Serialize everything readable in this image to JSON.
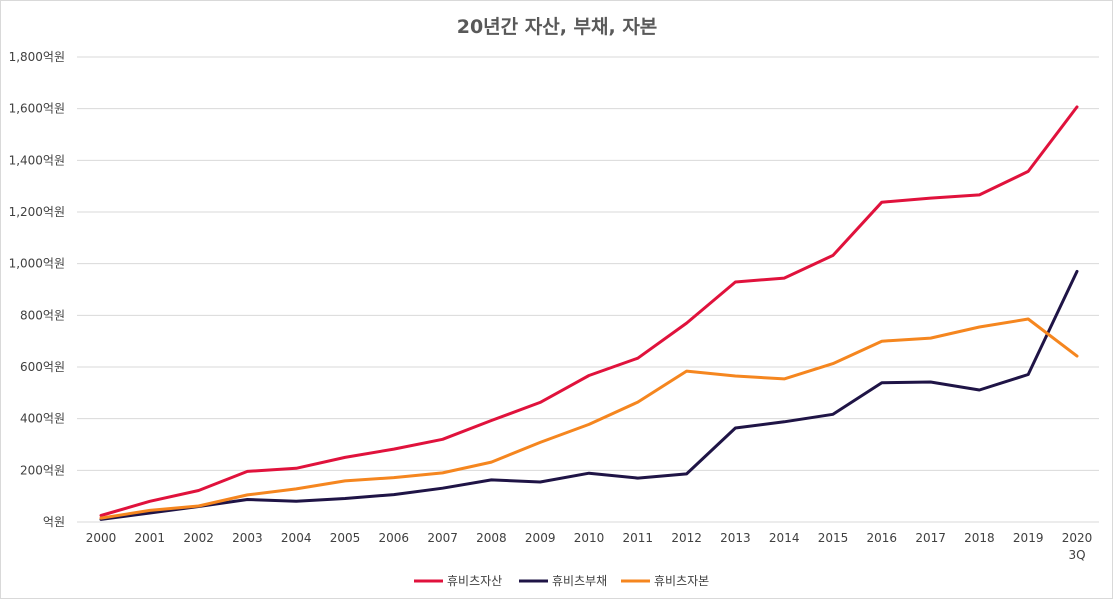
{
  "chart_data": {
    "type": "line",
    "title": "20년간 자산, 부채, 자본",
    "xlabel": "",
    "ylabel": "",
    "categories": [
      "2000",
      "2001",
      "2002",
      "2003",
      "2004",
      "2005",
      "2006",
      "2007",
      "2008",
      "2009",
      "2010",
      "2011",
      "2012",
      "2013",
      "2014",
      "2015",
      "2016",
      "2017",
      "2018",
      "2019",
      "2020\n3Q"
    ],
    "ylim": [
      0,
      1800
    ],
    "yticks": [
      0,
      200,
      400,
      600,
      800,
      1000,
      1200,
      1400,
      1600,
      1800
    ],
    "ytick_labels": [
      "억원",
      "200억원",
      "400억원",
      "600억원",
      "800억원",
      "1,000억원",
      "1,200억원",
      "1,400억원",
      "1,600억원",
      "1,800억원"
    ],
    "grid": true,
    "legend_position": "bottom",
    "series": [
      {
        "name": "휴비츠자산",
        "color": "#e0123c",
        "values": [
          25,
          80,
          122,
          196,
          208,
          250,
          282,
          320,
          393,
          463,
          567,
          634,
          770,
          929,
          944,
          1032,
          1238,
          1254,
          1266,
          1357,
          1607
        ]
      },
      {
        "name": "휴비츠부채",
        "color": "#1f1446",
        "values": [
          10,
          35,
          60,
          87,
          80,
          91,
          106,
          131,
          163,
          155,
          189,
          170,
          186,
          364,
          388,
          417,
          539,
          542,
          511,
          571,
          970
        ]
      },
      {
        "name": "휴비츠자본",
        "color": "#f5861f",
        "values": [
          15,
          45,
          62,
          105,
          128,
          159,
          172,
          190,
          232,
          308,
          378,
          464,
          584,
          565,
          554,
          613,
          700,
          712,
          755,
          786,
          642
        ]
      }
    ]
  }
}
